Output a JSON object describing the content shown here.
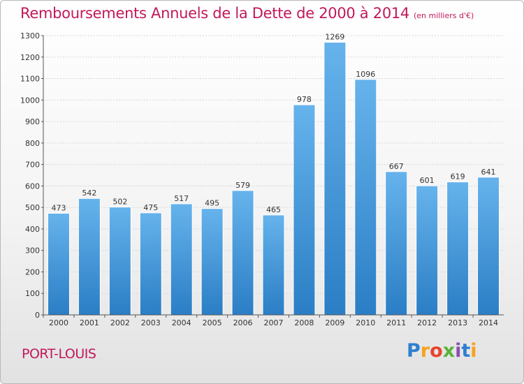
{
  "chart_data": {
    "type": "bar",
    "title": "Remboursements Annuels de la Dette de 2000 à 2014",
    "unit": "(en milliers d'€)",
    "categories": [
      "2000",
      "2001",
      "2002",
      "2003",
      "2004",
      "2005",
      "2006",
      "2007",
      "2008",
      "2009",
      "2010",
      "2011",
      "2012",
      "2013",
      "2014"
    ],
    "values": [
      473,
      542,
      502,
      475,
      517,
      495,
      579,
      465,
      978,
      1269,
      1096,
      667,
      601,
      619,
      641
    ],
    "ylim": [
      0,
      1300
    ],
    "yticks": [
      0,
      100,
      200,
      300,
      400,
      500,
      600,
      700,
      800,
      900,
      1000,
      1100,
      1200,
      1300
    ],
    "grid": true,
    "bar_color": "#3f95d8"
  },
  "place": "PORT-LOUIS",
  "logo": {
    "letters": [
      "P",
      "r",
      "o",
      "x",
      "i",
      "t",
      "i"
    ]
  },
  "colors": {
    "title": "#c2185b",
    "bar_top": "#66b3ec",
    "bar_bottom": "#2b7ec5"
  }
}
